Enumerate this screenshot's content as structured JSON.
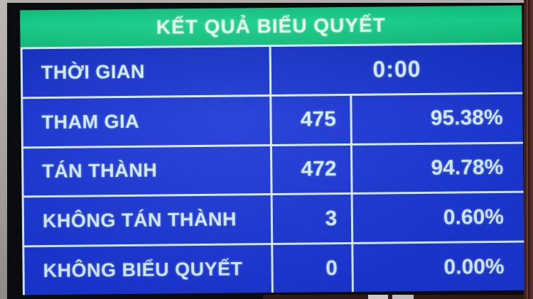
{
  "colors": {
    "header_bg": "#15c985",
    "header_text": "#eafff5",
    "table_bg": "#1a36d4",
    "table_text": "#d7f0fb",
    "grid_line": "#d8edf6",
    "bezel": "#0b0c10"
  },
  "screen": {
    "title": "KẾT QUẢ BIỂU QUYẾT",
    "rows": [
      {
        "label": "THỜI GIAN",
        "value": "0:00"
      },
      {
        "label": "THAM GIA",
        "count": "475",
        "percent": "95.38%"
      },
      {
        "label": "TÁN THÀNH",
        "count": "472",
        "percent": "94.78%"
      },
      {
        "label": "KHÔNG TÁN THÀNH",
        "count": "3",
        "percent": "0.60%"
      },
      {
        "label": "KHÔNG BIỂU QUYẾT",
        "count": "0",
        "percent": "0.00%"
      }
    ]
  }
}
